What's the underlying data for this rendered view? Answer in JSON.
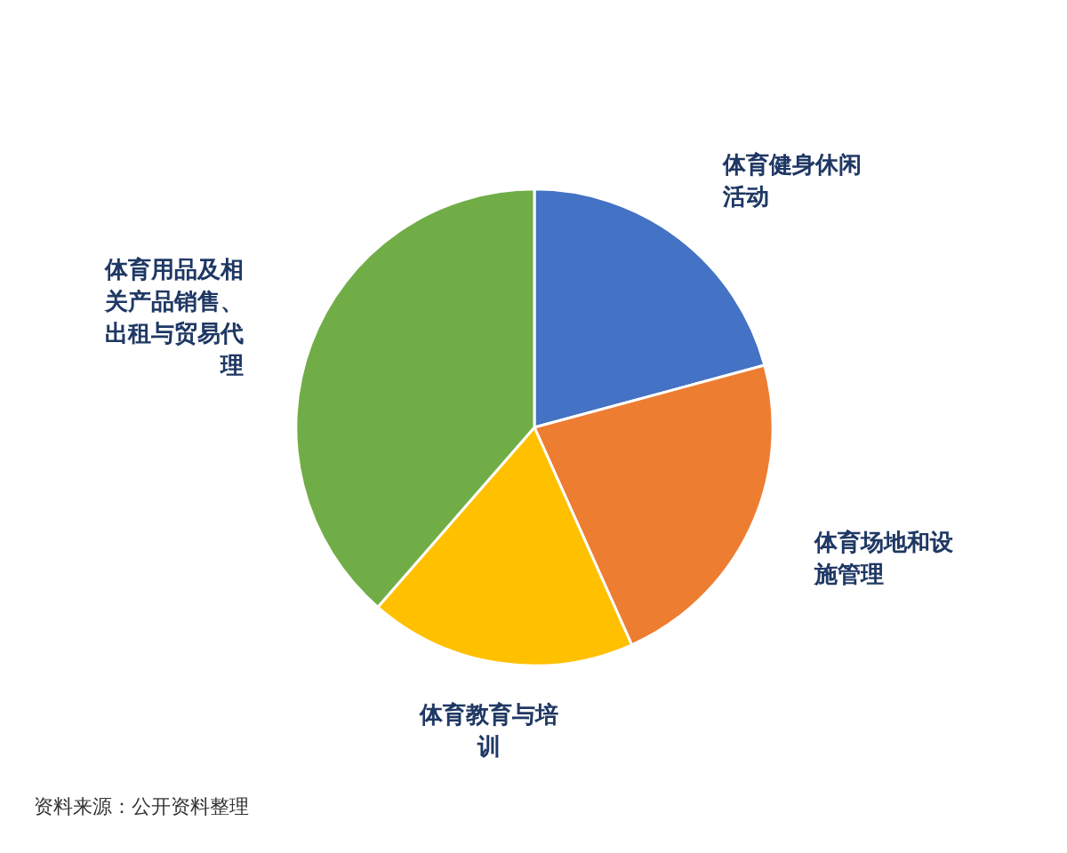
{
  "chart_data": {
    "type": "pie",
    "categories": [
      "体育健身休闲活动",
      "体育场地和设施管理",
      "体育教育与培训",
      "体育用品及相关产品销售、出租与贸易代理"
    ],
    "values": [
      20.8,
      22.5,
      18.1,
      38.6
    ],
    "colors": [
      "#4472c4",
      "#ed7d31",
      "#ffc000",
      "#70ad47"
    ],
    "annotations": [
      "资料来源：公开资料整理"
    ]
  }
}
